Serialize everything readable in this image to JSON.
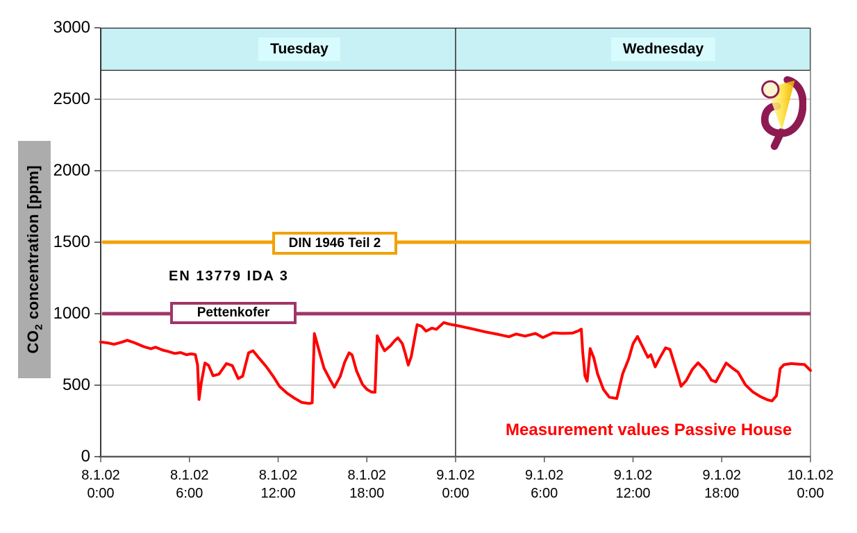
{
  "colors": {
    "band": "#C8F1F5",
    "band_label": "#D8FBFE",
    "orange": "#F2A104",
    "purple": "#A03568",
    "red": "#FF0000",
    "grid": "#A2A2A2",
    "axis": "#3A3A3A",
    "border": "#7A7A7A",
    "ylabel_bg": "#ACACAC",
    "logo_maroon": "#8E1A52",
    "logo_cream": "#FCF4CF"
  },
  "yaxis": {
    "title_prefix": "CO",
    "title_sub": "2",
    "title_suffix": " concentration [ppm]"
  },
  "chart_data": {
    "type": "line",
    "title": "",
    "ylabel": "CO2 concentration [ppm]",
    "ylim": [
      0,
      3000
    ],
    "yticks": [
      0,
      500,
      1000,
      1500,
      2000,
      2500,
      3000
    ],
    "x_range_hours": [
      0,
      48
    ],
    "xtick_step_hours": 6,
    "xticks": [
      {
        "date": "8.1.02",
        "time": "0:00"
      },
      {
        "date": "8.1.02",
        "time": "6:00"
      },
      {
        "date": "8.1.02",
        "time": "12:00"
      },
      {
        "date": "8.1.02",
        "time": "18:00"
      },
      {
        "date": "9.1.02",
        "time": "0:00"
      },
      {
        "date": "9.1.02",
        "time": "6:00"
      },
      {
        "date": "9.1.02",
        "time": "12:00"
      },
      {
        "date": "9.1.02",
        "time": "18:00"
      },
      {
        "date": "10.1.02",
        "time": "0:00"
      }
    ],
    "grid": "horizontal",
    "legend_position": "none",
    "day_bands": {
      "ppm_range": [
        2700,
        3000
      ],
      "labels": [
        "Tuesday",
        "Wednesday"
      ],
      "divider_hour": 24
    },
    "reference_lines": [
      {
        "label": "DIN 1946 Teil 2",
        "value": 1500
      },
      {
        "label": "Pettenkofer",
        "value": 1000
      }
    ],
    "annotations": [
      {
        "text": "EN 13779 IDA 3",
        "approx_ppm": 1300
      },
      {
        "text": "Measurement values Passive House",
        "approx_ppm": 200
      }
    ],
    "series": [
      {
        "name": "Measurement values Passive House",
        "x_unit": "hours from 8.1.02 0:00",
        "y_unit": "ppm",
        "points": [
          [
            0,
            802
          ],
          [
            0.5,
            795
          ],
          [
            0.9,
            786
          ],
          [
            1.4,
            800
          ],
          [
            1.8,
            814
          ],
          [
            2.3,
            796
          ],
          [
            2.9,
            770
          ],
          [
            3.4,
            755
          ],
          [
            3.7,
            766
          ],
          [
            4.2,
            745
          ],
          [
            4.6,
            735
          ],
          [
            5.0,
            722
          ],
          [
            5.4,
            728
          ],
          [
            5.8,
            713
          ],
          [
            6.1,
            719
          ],
          [
            6.4,
            714
          ],
          [
            6.55,
            640
          ],
          [
            6.65,
            400
          ],
          [
            6.8,
            515
          ],
          [
            7.05,
            655
          ],
          [
            7.3,
            638
          ],
          [
            7.6,
            566
          ],
          [
            8.0,
            577
          ],
          [
            8.5,
            651
          ],
          [
            8.9,
            637
          ],
          [
            9.3,
            546
          ],
          [
            9.6,
            563
          ],
          [
            10.0,
            726
          ],
          [
            10.3,
            741
          ],
          [
            10.7,
            691
          ],
          [
            11.2,
            629
          ],
          [
            11.7,
            557
          ],
          [
            12.1,
            491
          ],
          [
            12.6,
            444
          ],
          [
            13.1,
            409
          ],
          [
            13.6,
            379
          ],
          [
            14.1,
            372
          ],
          [
            14.3,
            377
          ],
          [
            14.45,
            861
          ],
          [
            14.8,
            729
          ],
          [
            15.1,
            620
          ],
          [
            15.5,
            541
          ],
          [
            15.8,
            486
          ],
          [
            16.2,
            561
          ],
          [
            16.5,
            661
          ],
          [
            16.8,
            726
          ],
          [
            17.0,
            711
          ],
          [
            17.3,
            601
          ],
          [
            17.7,
            506
          ],
          [
            18.0,
            471
          ],
          [
            18.3,
            453
          ],
          [
            18.55,
            450
          ],
          [
            18.7,
            846
          ],
          [
            19.0,
            779
          ],
          [
            19.2,
            741
          ],
          [
            19.6,
            776
          ],
          [
            19.9,
            813
          ],
          [
            20.1,
            831
          ],
          [
            20.4,
            791
          ],
          [
            20.6,
            721
          ],
          [
            20.8,
            641
          ],
          [
            21.0,
            699
          ],
          [
            21.4,
            923
          ],
          [
            21.7,
            912
          ],
          [
            22.0,
            878
          ],
          [
            22.4,
            899
          ],
          [
            22.7,
            891
          ],
          [
            23.2,
            938
          ],
          [
            23.6,
            926
          ],
          [
            24.1,
            917
          ],
          [
            24.6,
            906
          ],
          [
            25.3,
            890
          ],
          [
            26.0,
            873
          ],
          [
            26.9,
            855
          ],
          [
            27.6,
            839
          ],
          [
            28.1,
            858
          ],
          [
            28.7,
            843
          ],
          [
            29.4,
            862
          ],
          [
            29.9,
            833
          ],
          [
            30.6,
            866
          ],
          [
            31.2,
            862
          ],
          [
            31.9,
            864
          ],
          [
            32.3,
            880
          ],
          [
            32.5,
            892
          ],
          [
            32.6,
            730
          ],
          [
            32.75,
            565
          ],
          [
            32.9,
            528
          ],
          [
            33.1,
            756
          ],
          [
            33.35,
            690
          ],
          [
            33.6,
            580
          ],
          [
            34.0,
            470
          ],
          [
            34.4,
            416
          ],
          [
            34.9,
            407
          ],
          [
            35.3,
            580
          ],
          [
            35.7,
            682
          ],
          [
            36.0,
            790
          ],
          [
            36.3,
            841
          ],
          [
            36.6,
            779
          ],
          [
            37.0,
            695
          ],
          [
            37.2,
            713
          ],
          [
            37.5,
            628
          ],
          [
            37.8,
            689
          ],
          [
            38.2,
            761
          ],
          [
            38.5,
            750
          ],
          [
            39.0,
            581
          ],
          [
            39.25,
            492
          ],
          [
            39.6,
            533
          ],
          [
            40.0,
            609
          ],
          [
            40.4,
            657
          ],
          [
            40.9,
            603
          ],
          [
            41.3,
            535
          ],
          [
            41.6,
            523
          ],
          [
            42.0,
            599
          ],
          [
            42.3,
            655
          ],
          [
            42.7,
            621
          ],
          [
            43.1,
            591
          ],
          [
            43.6,
            503
          ],
          [
            44.1,
            453
          ],
          [
            44.6,
            421
          ],
          [
            45.1,
            397
          ],
          [
            45.4,
            390
          ],
          [
            45.7,
            426
          ],
          [
            45.95,
            616
          ],
          [
            46.2,
            643
          ],
          [
            46.7,
            651
          ],
          [
            47.2,
            647
          ],
          [
            47.6,
            644
          ],
          [
            48,
            603
          ]
        ]
      }
    ]
  }
}
